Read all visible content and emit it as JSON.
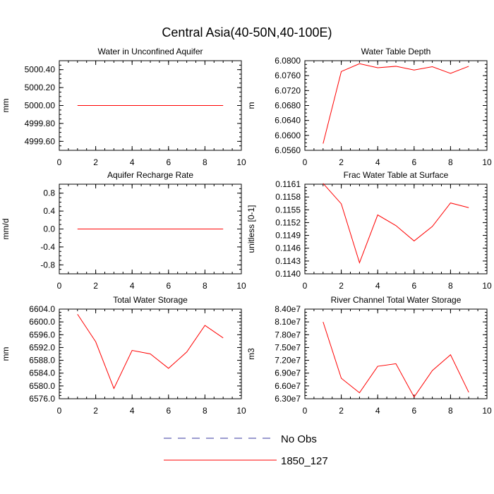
{
  "title": "Central Asia(40-50N,40-100E)",
  "colors": {
    "model": "#ff0000",
    "obs": "#3a3aa0",
    "axis": "#000000"
  },
  "chart_data": [
    {
      "type": "line",
      "title": "Water in Unconfined Aquifer",
      "ylabel": "mm",
      "xlim": [
        0,
        10
      ],
      "ylim": [
        4999.5,
        5000.5
      ],
      "xticks": [
        "0",
        "2",
        "4",
        "6",
        "8",
        "10"
      ],
      "yticks": [
        "4999.60",
        "4999.80",
        "5000.00",
        "5000.20",
        "5000.40"
      ],
      "series": [
        {
          "name": "1850_127",
          "x": [
            1,
            2,
            3,
            4,
            5,
            6,
            7,
            8,
            9
          ],
          "y": [
            5000,
            5000,
            5000,
            5000,
            5000,
            5000,
            5000,
            5000,
            5000
          ]
        }
      ]
    },
    {
      "type": "line",
      "title": "Water Table Depth",
      "ylabel": "m",
      "xlim": [
        0,
        10
      ],
      "ylim": [
        6.056,
        6.08
      ],
      "xticks": [
        "0",
        "2",
        "4",
        "6",
        "8",
        "10"
      ],
      "yticks": [
        "6.0560",
        "6.0600",
        "6.0640",
        "6.0680",
        "6.0720",
        "6.0760",
        "6.0800"
      ],
      "series": [
        {
          "name": "1850_127",
          "x": [
            1,
            2,
            3,
            4,
            5,
            6,
            7,
            8,
            9
          ],
          "y": [
            6.0578,
            6.0771,
            6.0792,
            6.0781,
            6.0785,
            6.0775,
            6.0784,
            6.0766,
            6.0785
          ]
        }
      ]
    },
    {
      "type": "line",
      "title": "Aquifer Recharge Rate",
      "ylabel": "mm/d",
      "xlim": [
        0,
        10
      ],
      "ylim": [
        -1.0,
        1.0
      ],
      "xticks": [
        "0",
        "2",
        "4",
        "6",
        "8",
        "10"
      ],
      "yticks": [
        "-0.8",
        "-0.4",
        "0.0",
        "0.4",
        "0.8"
      ],
      "series": [
        {
          "name": "1850_127",
          "x": [
            1,
            2,
            3,
            4,
            5,
            6,
            7,
            8,
            9
          ],
          "y": [
            0,
            0,
            0,
            0,
            0,
            0,
            0,
            0,
            0
          ]
        }
      ]
    },
    {
      "type": "line",
      "title": "Frac Water Table at Surface",
      "ylabel": "unitless [0-1]",
      "xlim": [
        0,
        10
      ],
      "ylim": [
        0.114,
        0.1161
      ],
      "xticks": [
        "0",
        "2",
        "4",
        "6",
        "8",
        "10"
      ],
      "yticks": [
        "0.1140",
        "0.1143",
        "0.1146",
        "0.1149",
        "0.1152",
        "0.1155",
        "0.1158",
        "0.1161"
      ],
      "series": [
        {
          "name": "1850_127",
          "x": [
            1,
            2,
            3,
            4,
            5,
            6,
            7,
            8,
            9
          ],
          "y": [
            0.11612,
            0.11564,
            0.11426,
            0.11538,
            0.11513,
            0.11477,
            0.11511,
            0.11566,
            0.11555
          ]
        }
      ]
    },
    {
      "type": "line",
      "title": "Total Water Storage",
      "ylabel": "mm",
      "xlim": [
        0,
        10
      ],
      "ylim": [
        6576.0,
        6604.0
      ],
      "xticks": [
        "0",
        "2",
        "4",
        "6",
        "8",
        "10"
      ],
      "yticks": [
        "6576.0",
        "6580.0",
        "6584.0",
        "6588.0",
        "6592.0",
        "6596.0",
        "6600.0",
        "6604.0"
      ],
      "series": [
        {
          "name": "1850_127",
          "x": [
            1,
            2,
            3,
            4,
            5,
            6,
            7,
            8,
            9
          ],
          "y": [
            6602.4,
            6593.8,
            6579.2,
            6591.1,
            6590.0,
            6585.5,
            6590.6,
            6598.9,
            6595.0
          ]
        }
      ]
    },
    {
      "type": "line",
      "title": "River Channel Total Water Storage",
      "ylabel": "m3",
      "xlim": [
        0,
        10
      ],
      "ylim": [
        63000000,
        84000000
      ],
      "xticks": [
        "0",
        "2",
        "4",
        "6",
        "8",
        "10"
      ],
      "yticks": [
        "6.30e7",
        "6.60e7",
        "6.90e7",
        "7.20e7",
        "7.50e7",
        "7.80e7",
        "8.10e7",
        "8.40e7"
      ],
      "series": [
        {
          "name": "1850_127",
          "x": [
            1,
            2,
            3,
            4,
            5,
            6,
            7,
            8,
            9
          ],
          "y": [
            81000000,
            67800000,
            64400000,
            70600000,
            71200000,
            63400000,
            69600000,
            73300000,
            64500000
          ]
        }
      ]
    }
  ],
  "legend": [
    {
      "label": "No Obs",
      "style": "dashed",
      "color": "#3a3aa0"
    },
    {
      "label": "1850_127",
      "style": "solid",
      "color": "#ff0000"
    }
  ]
}
